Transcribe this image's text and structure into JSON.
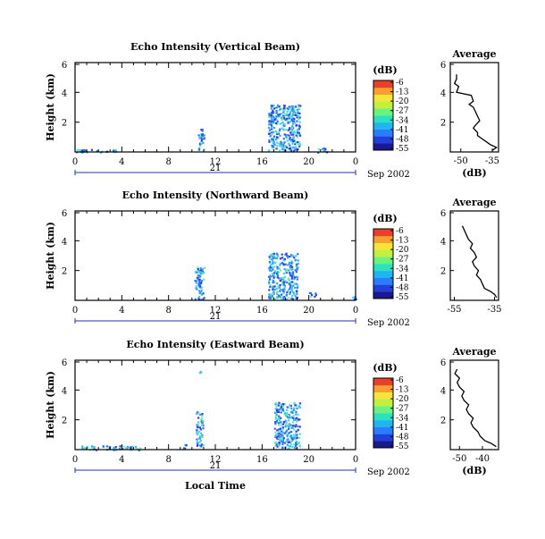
{
  "colors": {
    "colorbar": [
      "#1a1a8c",
      "#2240d8",
      "#2b7cff",
      "#21b5f0",
      "#2de0c0",
      "#6cf27e",
      "#c2f040",
      "#f5e43a",
      "#f5a030",
      "#e8402a"
    ],
    "echo": [
      "#2a40e0",
      "#2f6cf5",
      "#35a0f0",
      "#3fd0e8",
      "#6ae6b8"
    ]
  },
  "panels": [
    {
      "title": "Echo Intensity (Vertical Beam)",
      "ylabel": "Height (km)",
      "yticks": [
        "6",
        "4",
        "2"
      ],
      "xticks": [
        "0",
        "4",
        "8",
        "12",
        "16",
        "20",
        "0"
      ],
      "day_label": "21",
      "date_label": "Sep 2002",
      "colorbar_unit": "(dB)",
      "colorbar_ticks": [
        "-6",
        "-13",
        "-20",
        "-27",
        "-34",
        "-41",
        "-48",
        "-55"
      ],
      "avg_title": "Average",
      "avg_xticks": [
        "-50",
        "-35"
      ],
      "avg_yticks": [
        "6",
        "4",
        "2"
      ],
      "avg_xlabel": "(dB)"
    },
    {
      "title": "Echo Intensity (Northward Beam)",
      "ylabel": "Height (km)",
      "yticks": [
        "6",
        "4",
        "2"
      ],
      "xticks": [
        "0",
        "4",
        "8",
        "12",
        "16",
        "20",
        "0"
      ],
      "day_label": "21",
      "date_label": "Sep 2002",
      "colorbar_unit": "(dB)",
      "colorbar_ticks": [
        "-6",
        "-13",
        "-20",
        "-27",
        "-34",
        "-41",
        "-48",
        "-55"
      ],
      "avg_title": "Average",
      "avg_xticks": [
        "-55",
        "-35"
      ],
      "avg_yticks": [
        "6",
        "4",
        "2"
      ],
      "avg_xlabel": ""
    },
    {
      "title": "Echo Intensity (Eastward Beam)",
      "ylabel": "Height (km)",
      "yticks": [
        "6",
        "4",
        "2"
      ],
      "xticks": [
        "0",
        "4",
        "8",
        "12",
        "16",
        "20",
        "0"
      ],
      "day_label": "21",
      "date_label": "Sep 2002",
      "colorbar_unit": "(dB)",
      "colorbar_ticks": [
        "-6",
        "-13",
        "-20",
        "-27",
        "-34",
        "-41",
        "-48",
        "-55"
      ],
      "avg_title": "Average",
      "avg_xticks": [
        "-50",
        "-40"
      ],
      "avg_yticks": [
        "6",
        "4",
        "2"
      ],
      "avg_xlabel": "(dB)"
    }
  ],
  "xlabel": "Local Time",
  "chart_data": [
    {
      "type": "heatmap",
      "title": "Echo Intensity (Vertical Beam)",
      "xlabel": "",
      "ylabel": "Height (km)",
      "xlim": [
        0,
        24
      ],
      "ylim": [
        0,
        6
      ],
      "zlim": [
        -55,
        -6
      ],
      "blobs": [
        {
          "x": [
            10.5,
            11.0
          ],
          "y": [
            0.1,
            1.7
          ],
          "z": -45
        },
        {
          "x": [
            16.5,
            19.2
          ],
          "y": [
            0.1,
            3.2
          ],
          "z": -42
        },
        {
          "x": [
            18.2,
            18.8
          ],
          "y": [
            2.2,
            3.2
          ],
          "z": -48
        },
        {
          "x": [
            0.0,
            3.5
          ],
          "y": [
            0.0,
            0.2
          ],
          "z": -52
        },
        {
          "x": [
            20.5,
            21.5
          ],
          "y": [
            0.0,
            0.3
          ],
          "z": -52
        }
      ]
    },
    {
      "type": "heatmap",
      "title": "Echo Intensity (Northward Beam)",
      "xlabel": "",
      "ylabel": "Height (km)",
      "xlim": [
        0,
        24
      ],
      "ylim": [
        0,
        6
      ],
      "zlim": [
        -55,
        -6
      ],
      "blobs": [
        {
          "x": [
            10.2,
            11.0
          ],
          "y": [
            0.1,
            2.3
          ],
          "z": -45
        },
        {
          "x": [
            16.5,
            19.0
          ],
          "y": [
            0.1,
            3.2
          ],
          "z": -42
        },
        {
          "x": [
            20.0,
            20.6
          ],
          "y": [
            0.3,
            0.6
          ],
          "z": -52
        },
        {
          "x": [
            23.5,
            24.0
          ],
          "y": [
            0.1,
            0.4
          ],
          "z": -40
        }
      ]
    },
    {
      "type": "heatmap",
      "title": "Echo Intensity (Eastward Beam)",
      "xlabel": "Local Time",
      "ylabel": "Height (km)",
      "xlim": [
        0,
        24
      ],
      "ylim": [
        0,
        6
      ],
      "zlim": [
        -55,
        -6
      ],
      "blobs": [
        {
          "x": [
            10.3,
            10.9
          ],
          "y": [
            0.1,
            2.6
          ],
          "z": -45
        },
        {
          "x": [
            17.0,
            19.2
          ],
          "y": [
            0.1,
            3.2
          ],
          "z": -42
        },
        {
          "x": [
            0.5,
            5.5
          ],
          "y": [
            0.0,
            0.3
          ],
          "z": -52
        },
        {
          "x": [
            9.2,
            9.6
          ],
          "y": [
            0.0,
            0.4
          ],
          "z": -50
        },
        {
          "x": [
            10.6,
            10.7
          ],
          "y": [
            5.2,
            5.3
          ],
          "z": -50
        }
      ]
    },
    {
      "type": "line",
      "title": "Average",
      "xlabel": "(dB)",
      "xlim": [
        -55,
        -32
      ],
      "ylim": [
        0,
        6
      ],
      "x": [
        -35,
        -33,
        -36,
        -38,
        -40,
        -42,
        -42,
        -44,
        -43,
        -41,
        -42,
        -43,
        -44,
        -46,
        -44,
        -45,
        -52,
        -51,
        -53,
        -52,
        -52
      ],
      "y": [
        0.1,
        0.3,
        0.5,
        0.7,
        0.9,
        1.1,
        1.3,
        1.6,
        1.8,
        2.1,
        2.4,
        2.7,
        3.0,
        3.2,
        3.4,
        3.8,
        4.0,
        4.4,
        4.6,
        4.9,
        5.2
      ]
    },
    {
      "type": "line",
      "title": "Average",
      "xlabel": "",
      "xlim": [
        -57,
        -33
      ],
      "ylim": [
        0,
        6
      ],
      "x": [
        -34,
        -35,
        -37,
        -40,
        -41,
        -42,
        -44,
        -43,
        -45,
        -46,
        -44,
        -45,
        -47,
        -46,
        -48,
        -49,
        -50,
        -51
      ],
      "y": [
        0.2,
        0.4,
        0.6,
        0.8,
        1.1,
        1.4,
        1.7,
        2.0,
        2.3,
        2.6,
        2.9,
        3.2,
        3.5,
        3.8,
        4.1,
        4.4,
        4.7,
        5.0
      ]
    },
    {
      "type": "line",
      "title": "Average",
      "xlabel": "(dB)",
      "xlim": [
        -54,
        -33
      ],
      "ylim": [
        0,
        6
      ],
      "x": [
        -34,
        -36,
        -39,
        -41,
        -42,
        -44,
        -45,
        -44,
        -46,
        -47,
        -46,
        -48,
        -49,
        -48,
        -50,
        -51,
        -50,
        -52,
        -51
      ],
      "y": [
        0.2,
        0.4,
        0.6,
        0.9,
        1.2,
        1.5,
        1.8,
        2.1,
        2.4,
        2.7,
        3.0,
        3.3,
        3.6,
        3.9,
        4.2,
        4.5,
        4.8,
        5.1,
        5.4
      ]
    }
  ]
}
